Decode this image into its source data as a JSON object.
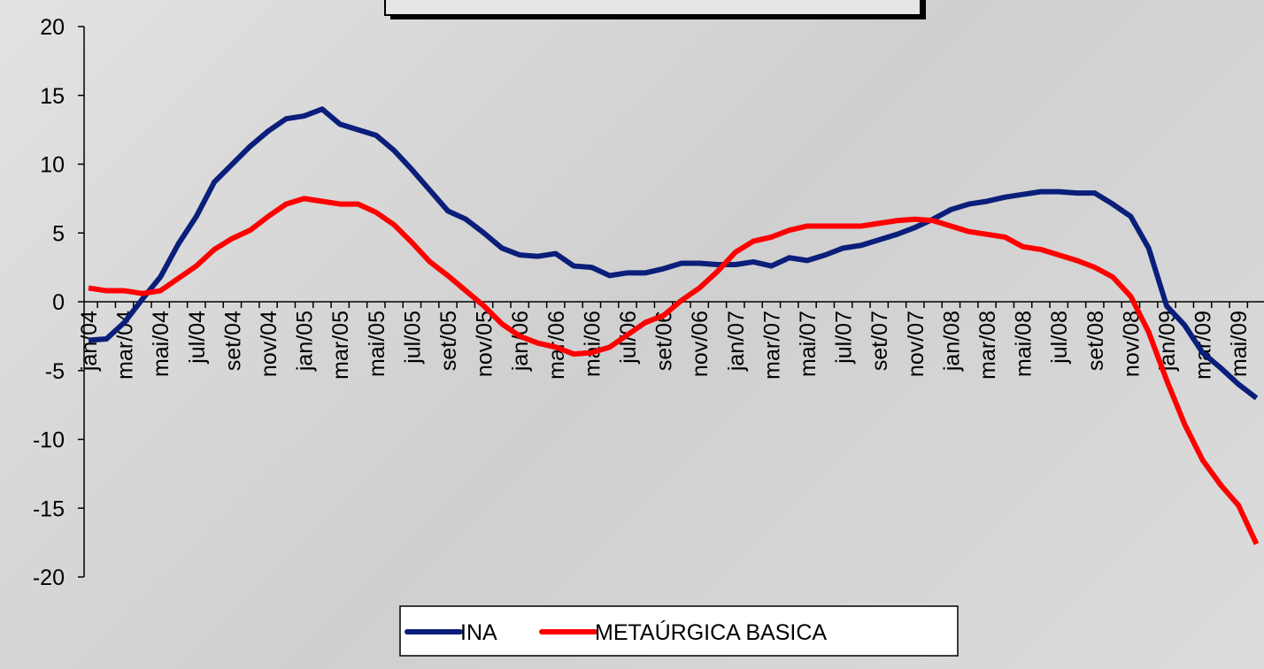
{
  "chart_data": {
    "type": "line",
    "categories": [
      "jan/04",
      null,
      "mar/04",
      null,
      "mai/04",
      null,
      "jul/04",
      null,
      "set/04",
      null,
      "nov/04",
      null,
      "jan/05",
      null,
      "mar/05",
      null,
      "mai/05",
      null,
      "jul/05",
      null,
      "set/05",
      null,
      "nov/05",
      null,
      "jan/06",
      null,
      "mar/06",
      null,
      "mai/06",
      null,
      "jul/06",
      null,
      "set/06",
      null,
      "nov/06",
      null,
      "jan/07",
      null,
      "mar/07",
      null,
      "mai/07",
      null,
      "jul/07",
      null,
      "set/07",
      null,
      "nov/07",
      null,
      "jan/08",
      null,
      "mar/08",
      null,
      "mai/08",
      null,
      "jul/08",
      null,
      "set/08",
      null,
      "nov/08",
      null,
      "jan/09",
      null,
      "mar/09",
      null,
      "mai/09",
      null
    ],
    "series": [
      {
        "name": "INA",
        "color": "#0a1e7a",
        "values": [
          -2.8,
          -2.7,
          -1.5,
          0.2,
          1.8,
          4.2,
          6.2,
          8.7,
          10,
          11.3,
          12.4,
          13.3,
          13.5,
          14,
          12.9,
          12.5,
          12.1,
          11,
          9.6,
          8.1,
          6.6,
          6,
          5,
          3.9,
          3.4,
          3.3,
          3.5,
          2.6,
          2.5,
          1.9,
          2.1,
          2.1,
          2.4,
          2.8,
          2.8,
          2.7,
          2.7,
          2.9,
          2.6,
          3.2,
          3,
          3.4,
          3.9,
          4.1,
          4.5,
          4.9,
          5.4,
          6,
          6.7,
          7.1,
          7.3,
          7.6,
          7.8,
          8,
          8,
          7.9,
          7.9,
          7.1,
          6.2,
          3.9,
          -0.3,
          -1.7,
          -3.7,
          -4.8,
          -6,
          -7
        ]
      },
      {
        "name": "METAÚRGICA BASICA",
        "color": "#ff0000",
        "values": [
          1,
          0.8,
          0.8,
          0.6,
          0.8,
          1.7,
          2.6,
          3.8,
          4.6,
          5.2,
          6.2,
          7.1,
          7.5,
          7.3,
          7.1,
          7.1,
          6.5,
          5.6,
          4.3,
          2.9,
          1.9,
          0.8,
          -0.3,
          -1.6,
          -2.5,
          -3,
          -3.3,
          -3.8,
          -3.7,
          -3.3,
          -2.4,
          -1.5,
          -1,
          0.1,
          1,
          2.2,
          3.6,
          4.4,
          4.7,
          5.2,
          5.5,
          5.5,
          5.5,
          5.5,
          5.7,
          5.9,
          6,
          5.9,
          5.5,
          5.1,
          4.9,
          4.7,
          4,
          3.8,
          3.4,
          3,
          2.5,
          1.8,
          0.4,
          -2.2,
          -5.7,
          -8.9,
          -11.5,
          -13.3,
          -14.8,
          -17.6
        ]
      }
    ],
    "ylim": [
      -20,
      20
    ],
    "yticks": [
      -20,
      -15,
      -10,
      -5,
      0,
      5,
      10,
      15,
      20
    ],
    "legend": "bottom"
  }
}
